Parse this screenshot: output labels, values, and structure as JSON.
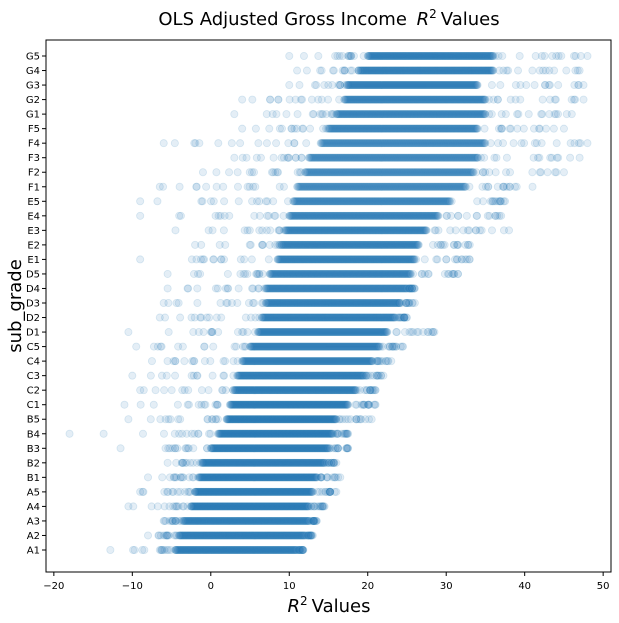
{
  "chart_data": {
    "type": "scatter",
    "title_main": "OLS Adjusted Gross Income",
    "title_math_base": "R",
    "title_math_exp": "2",
    "title_suffix": "Values",
    "xlabel_math_base": "R",
    "xlabel_math_exp": "2",
    "xlabel_suffix": "Values",
    "ylabel": "sub_grade",
    "xlim": [
      -21,
      51
    ],
    "xticks": [
      -20,
      -10,
      0,
      10,
      20,
      30,
      40,
      50
    ],
    "marker_color": "#1f77b4",
    "marker_alpha": 0.12,
    "grid": false,
    "categories": [
      "A1",
      "A2",
      "A3",
      "A4",
      "A5",
      "B1",
      "B2",
      "B3",
      "B4",
      "B5",
      "C1",
      "C2",
      "C3",
      "C4",
      "C5",
      "D1",
      "D2",
      "D3",
      "D4",
      "D5",
      "E1",
      "E2",
      "E3",
      "E4",
      "E5",
      "F1",
      "F2",
      "F3",
      "F4",
      "F5",
      "G1",
      "G2",
      "G3",
      "G4",
      "G5"
    ],
    "dense_range": [
      [
        -4.5,
        11
      ],
      [
        -4,
        12
      ],
      [
        -3.5,
        12.5
      ],
      [
        -2.5,
        12.5
      ],
      [
        -2,
        13
      ],
      [
        -1.5,
        13.5
      ],
      [
        -1,
        14.5
      ],
      [
        0,
        15
      ],
      [
        1,
        15.5
      ],
      [
        2,
        16
      ],
      [
        2.5,
        17.5
      ],
      [
        3,
        18.5
      ],
      [
        3.5,
        19.5
      ],
      [
        4,
        20.5
      ],
      [
        5,
        21.5
      ],
      [
        6,
        22.5
      ],
      [
        6.5,
        23.5
      ],
      [
        7,
        24
      ],
      [
        7,
        25
      ],
      [
        7.5,
        25.5
      ],
      [
        8.5,
        26
      ],
      [
        9,
        26.5
      ],
      [
        9.5,
        27.5
      ],
      [
        10,
        29
      ],
      [
        10.5,
        30.5
      ],
      [
        11,
        32.5
      ],
      [
        12,
        33.5
      ],
      [
        12.5,
        34
      ],
      [
        14,
        35
      ],
      [
        15,
        34
      ],
      [
        16,
        35
      ],
      [
        17,
        35
      ],
      [
        17.5,
        34
      ],
      [
        19,
        36
      ],
      [
        20,
        36
      ]
    ],
    "spread_range": [
      [
        -12.8,
        11.8
      ],
      [
        -8,
        13
      ],
      [
        -6,
        13.5
      ],
      [
        -10.5,
        14.5
      ],
      [
        -9,
        16
      ],
      [
        -8,
        16.5
      ],
      [
        -5.5,
        16
      ],
      [
        -11.5,
        17.5
      ],
      [
        -18,
        17.5
      ],
      [
        -10.5,
        20.5
      ],
      [
        -11,
        21
      ],
      [
        -9,
        21
      ],
      [
        -10,
        22
      ],
      [
        -7.5,
        23
      ],
      [
        -9.5,
        24.5
      ],
      [
        -10.5,
        28.5
      ],
      [
        -6.5,
        25
      ],
      [
        -6,
        26
      ],
      [
        -5.5,
        26
      ],
      [
        -5.5,
        31.5
      ],
      [
        -9,
        33
      ],
      [
        -2,
        33
      ],
      [
        -4.5,
        38
      ],
      [
        -9,
        37
      ],
      [
        -9,
        37.5
      ],
      [
        -6.5,
        41
      ],
      [
        -1,
        45
      ],
      [
        3,
        47
      ],
      [
        -6,
        48
      ],
      [
        4,
        45
      ],
      [
        3,
        46
      ],
      [
        4,
        47.5
      ],
      [
        10,
        47.5
      ],
      [
        11,
        47
      ],
      [
        10,
        48
      ]
    ]
  }
}
